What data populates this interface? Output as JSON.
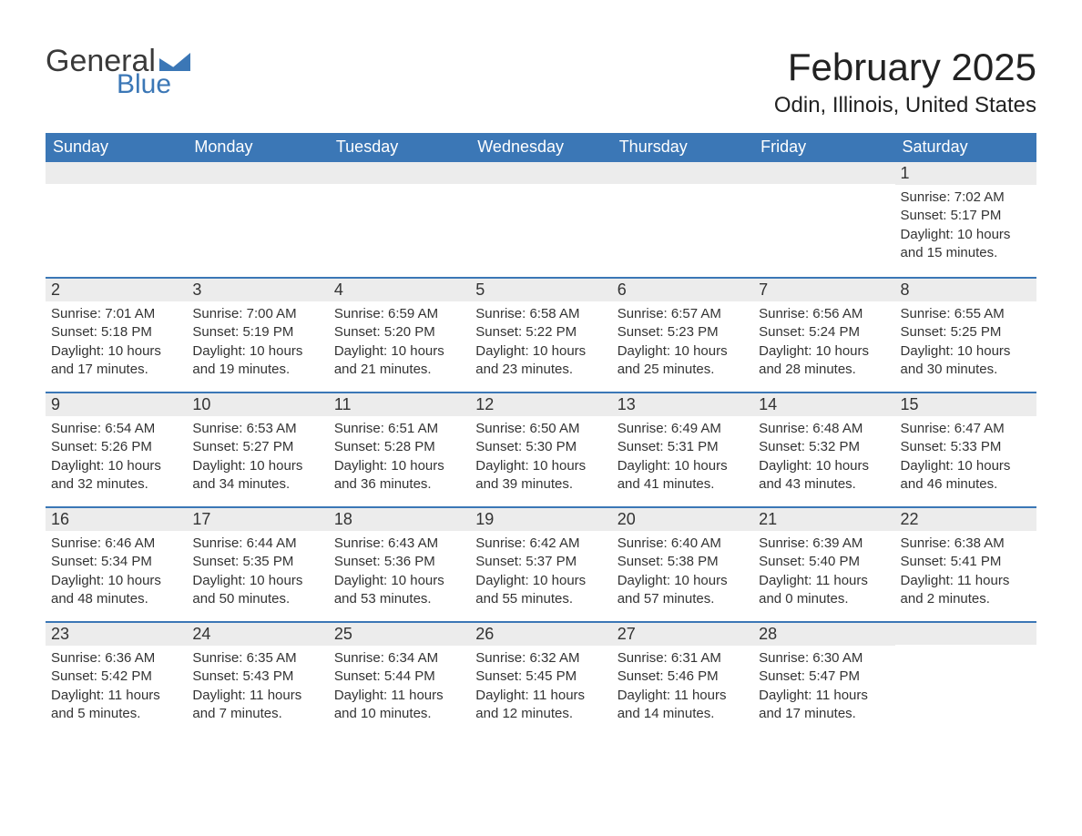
{
  "brand": {
    "word1": "General",
    "word2": "Blue",
    "flag_color": "#3b77b6"
  },
  "title": "February 2025",
  "location": "Odin, Illinois, United States",
  "colors": {
    "header_bg": "#3b77b6",
    "header_text": "#ffffff",
    "band_bg": "#ececec",
    "rule": "#3b77b6",
    "body_bg": "#ffffff",
    "text": "#333333"
  },
  "day_headers": [
    "Sunday",
    "Monday",
    "Tuesday",
    "Wednesday",
    "Thursday",
    "Friday",
    "Saturday"
  ],
  "weeks": [
    [
      {
        "blank": true
      },
      {
        "blank": true
      },
      {
        "blank": true
      },
      {
        "blank": true
      },
      {
        "blank": true
      },
      {
        "blank": true
      },
      {
        "n": "1",
        "sunrise": "7:02 AM",
        "sunset": "5:17 PM",
        "daylight": "10 hours and 15 minutes."
      }
    ],
    [
      {
        "n": "2",
        "sunrise": "7:01 AM",
        "sunset": "5:18 PM",
        "daylight": "10 hours and 17 minutes."
      },
      {
        "n": "3",
        "sunrise": "7:00 AM",
        "sunset": "5:19 PM",
        "daylight": "10 hours and 19 minutes."
      },
      {
        "n": "4",
        "sunrise": "6:59 AM",
        "sunset": "5:20 PM",
        "daylight": "10 hours and 21 minutes."
      },
      {
        "n": "5",
        "sunrise": "6:58 AM",
        "sunset": "5:22 PM",
        "daylight": "10 hours and 23 minutes."
      },
      {
        "n": "6",
        "sunrise": "6:57 AM",
        "sunset": "5:23 PM",
        "daylight": "10 hours and 25 minutes."
      },
      {
        "n": "7",
        "sunrise": "6:56 AM",
        "sunset": "5:24 PM",
        "daylight": "10 hours and 28 minutes."
      },
      {
        "n": "8",
        "sunrise": "6:55 AM",
        "sunset": "5:25 PM",
        "daylight": "10 hours and 30 minutes."
      }
    ],
    [
      {
        "n": "9",
        "sunrise": "6:54 AM",
        "sunset": "5:26 PM",
        "daylight": "10 hours and 32 minutes."
      },
      {
        "n": "10",
        "sunrise": "6:53 AM",
        "sunset": "5:27 PM",
        "daylight": "10 hours and 34 minutes."
      },
      {
        "n": "11",
        "sunrise": "6:51 AM",
        "sunset": "5:28 PM",
        "daylight": "10 hours and 36 minutes."
      },
      {
        "n": "12",
        "sunrise": "6:50 AM",
        "sunset": "5:30 PM",
        "daylight": "10 hours and 39 minutes."
      },
      {
        "n": "13",
        "sunrise": "6:49 AM",
        "sunset": "5:31 PM",
        "daylight": "10 hours and 41 minutes."
      },
      {
        "n": "14",
        "sunrise": "6:48 AM",
        "sunset": "5:32 PM",
        "daylight": "10 hours and 43 minutes."
      },
      {
        "n": "15",
        "sunrise": "6:47 AM",
        "sunset": "5:33 PM",
        "daylight": "10 hours and 46 minutes."
      }
    ],
    [
      {
        "n": "16",
        "sunrise": "6:46 AM",
        "sunset": "5:34 PM",
        "daylight": "10 hours and 48 minutes."
      },
      {
        "n": "17",
        "sunrise": "6:44 AM",
        "sunset": "5:35 PM",
        "daylight": "10 hours and 50 minutes."
      },
      {
        "n": "18",
        "sunrise": "6:43 AM",
        "sunset": "5:36 PM",
        "daylight": "10 hours and 53 minutes."
      },
      {
        "n": "19",
        "sunrise": "6:42 AM",
        "sunset": "5:37 PM",
        "daylight": "10 hours and 55 minutes."
      },
      {
        "n": "20",
        "sunrise": "6:40 AM",
        "sunset": "5:38 PM",
        "daylight": "10 hours and 57 minutes."
      },
      {
        "n": "21",
        "sunrise": "6:39 AM",
        "sunset": "5:40 PM",
        "daylight": "11 hours and 0 minutes."
      },
      {
        "n": "22",
        "sunrise": "6:38 AM",
        "sunset": "5:41 PM",
        "daylight": "11 hours and 2 minutes."
      }
    ],
    [
      {
        "n": "23",
        "sunrise": "6:36 AM",
        "sunset": "5:42 PM",
        "daylight": "11 hours and 5 minutes."
      },
      {
        "n": "24",
        "sunrise": "6:35 AM",
        "sunset": "5:43 PM",
        "daylight": "11 hours and 7 minutes."
      },
      {
        "n": "25",
        "sunrise": "6:34 AM",
        "sunset": "5:44 PM",
        "daylight": "11 hours and 10 minutes."
      },
      {
        "n": "26",
        "sunrise": "6:32 AM",
        "sunset": "5:45 PM",
        "daylight": "11 hours and 12 minutes."
      },
      {
        "n": "27",
        "sunrise": "6:31 AM",
        "sunset": "5:46 PM",
        "daylight": "11 hours and 14 minutes."
      },
      {
        "n": "28",
        "sunrise": "6:30 AM",
        "sunset": "5:47 PM",
        "daylight": "11 hours and 17 minutes."
      },
      {
        "blank": true
      }
    ]
  ],
  "labels": {
    "sunrise": "Sunrise:",
    "sunset": "Sunset:",
    "daylight": "Daylight:"
  }
}
